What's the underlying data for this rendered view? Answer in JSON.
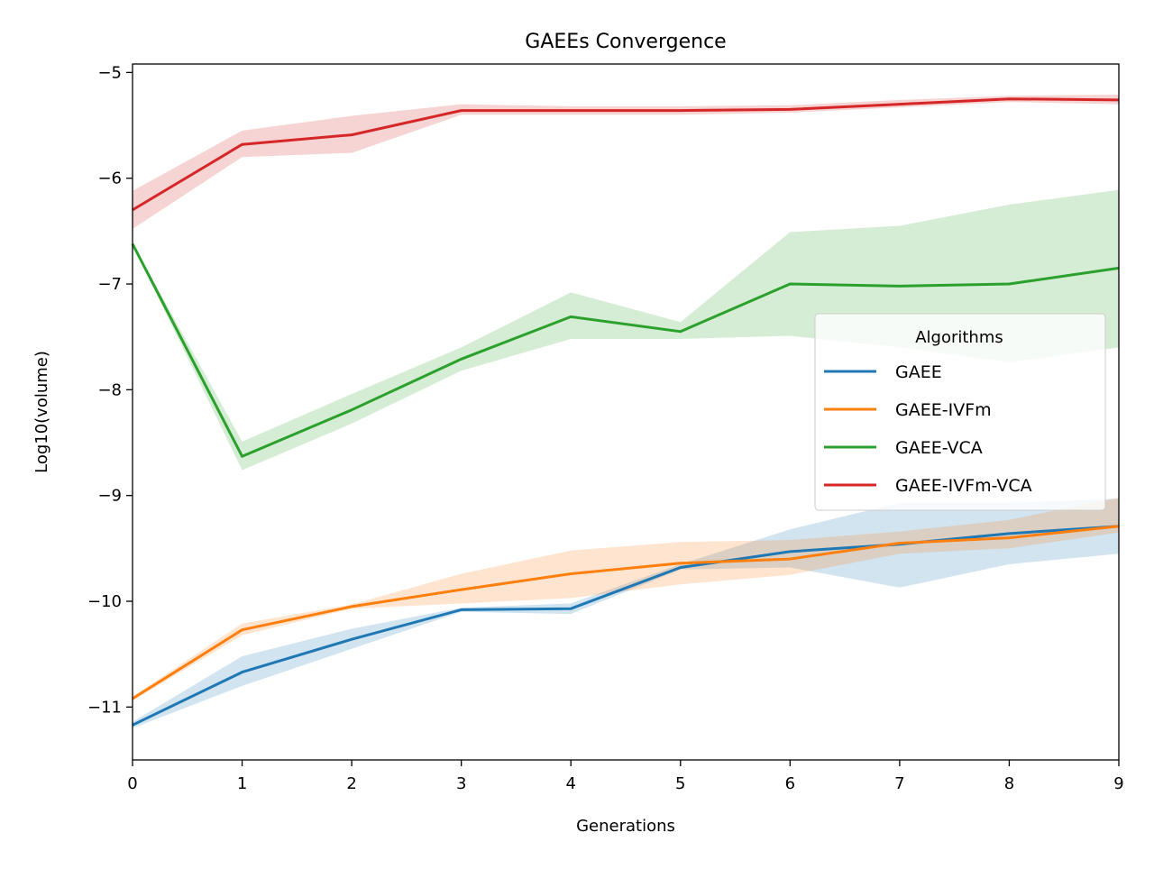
{
  "chart_data": {
    "type": "line",
    "title": "GAEEs Convergence",
    "xlabel": "Generations",
    "ylabel": "Log10(volume)",
    "xlim": [
      0,
      9
    ],
    "ylim": [
      -11.5,
      -4.92
    ],
    "x": [
      0,
      1,
      2,
      3,
      4,
      5,
      6,
      7,
      8,
      9
    ],
    "xticks": [
      "0",
      "1",
      "2",
      "3",
      "4",
      "5",
      "6",
      "7",
      "8",
      "9"
    ],
    "yticks": [
      {
        "value": -5,
        "label": "−5"
      },
      {
        "value": -6,
        "label": "−6"
      },
      {
        "value": -7,
        "label": "−7"
      },
      {
        "value": -8,
        "label": "−8"
      },
      {
        "value": -9,
        "label": "−9"
      },
      {
        "value": -10,
        "label": "−10"
      },
      {
        "value": -11,
        "label": "−11"
      }
    ],
    "grid": false,
    "legend": {
      "title": "Algorithms",
      "position": "center-right"
    },
    "series": [
      {
        "name": "GAEE",
        "color": "#1f77b4",
        "values": [
          -11.17,
          -10.67,
          -10.36,
          -10.08,
          -10.07,
          -9.68,
          -9.53,
          -9.46,
          -9.36,
          -9.29
        ],
        "lower": [
          -11.2,
          -10.8,
          -10.45,
          -10.1,
          -10.12,
          -9.7,
          -9.68,
          -9.87,
          -9.65,
          -9.55
        ],
        "upper": [
          -11.14,
          -10.52,
          -10.26,
          -10.06,
          -10.02,
          -9.65,
          -9.32,
          -9.07,
          -9.07,
          -9.03
        ]
      },
      {
        "name": "GAEE-IVFm",
        "color": "#ff7f0e",
        "values": [
          -10.92,
          -10.27,
          -10.05,
          -9.89,
          -9.74,
          -9.64,
          -9.6,
          -9.45,
          -9.4,
          -9.29
        ],
        "lower": [
          -10.94,
          -10.32,
          -10.07,
          -10.02,
          -9.97,
          -9.84,
          -9.75,
          -9.55,
          -9.5,
          -9.35
        ],
        "upper": [
          -10.9,
          -10.21,
          -10.03,
          -9.74,
          -9.52,
          -9.44,
          -9.42,
          -9.34,
          -9.23,
          -9.02
        ]
      },
      {
        "name": "GAEE-VCA",
        "color": "#2ca02c",
        "values": [
          -6.62,
          -8.63,
          -8.19,
          -7.71,
          -7.31,
          -7.45,
          -7.0,
          -7.02,
          -7.0,
          -6.85
        ],
        "lower": [
          -6.63,
          -8.76,
          -8.32,
          -7.82,
          -7.52,
          -7.52,
          -7.49,
          -7.6,
          -7.74,
          -7.6
        ],
        "upper": [
          -6.61,
          -8.49,
          -8.04,
          -7.6,
          -7.08,
          -7.36,
          -6.51,
          -6.45,
          -6.25,
          -6.11
        ]
      },
      {
        "name": "GAEE-IVFm-VCA",
        "color": "#d62728",
        "values": [
          -6.3,
          -5.68,
          -5.59,
          -5.36,
          -5.36,
          -5.36,
          -5.35,
          -5.3,
          -5.25,
          -5.26
        ],
        "lower": [
          -6.48,
          -5.8,
          -5.76,
          -5.4,
          -5.4,
          -5.4,
          -5.38,
          -5.33,
          -5.28,
          -5.3
        ],
        "upper": [
          -6.12,
          -5.55,
          -5.41,
          -5.3,
          -5.32,
          -5.32,
          -5.31,
          -5.26,
          -5.22,
          -5.21
        ]
      }
    ]
  }
}
